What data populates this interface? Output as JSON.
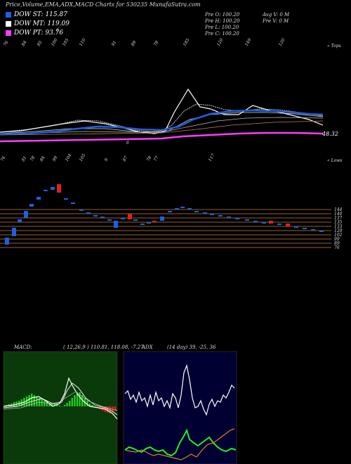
{
  "title": "Price,Volume,EMA,ADX,MACD Charts for 530235 MunafaSutra.com",
  "legend": [
    {
      "label": "DOW ST: 115.87",
      "color": "#1f5fe0"
    },
    {
      "label": "DOW MT: 119.09",
      "color": "#ffffff"
    },
    {
      "label": "DOW PT: 93.76",
      "color": "#ff3cff"
    }
  ],
  "ohlc_left": [
    "Pre  O: 100.20",
    "Pre  H: 100.20",
    "Pre  L: 100.20",
    "Pre  C: 100.20"
  ],
  "ohlc_right": [
    "Avg V: 0  M",
    "Pre  V: 0  M"
  ],
  "marker_6": "6",
  "top_ticks": [
    "76",
    "84",
    "85",
    "100",
    "105",
    "110",
    "91",
    "89",
    "78",
    "185",
    "120",
    "149",
    "120"
  ],
  "top_right_label": "« Tops",
  "bottom_ticks": [
    "76",
    "81",
    "78",
    "84",
    "99",
    "104",
    "105",
    "9",
    "87",
    "78",
    "77",
    "117"
  ],
  "bottom_right_label": "« Lows",
  "ema_last_value": "48.32",
  "ema_mark_6": "6",
  "price_levels": [
    "144",
    "140",
    "137",
    "135",
    "133",
    "128",
    "102",
    "99",
    "89",
    "76"
  ],
  "macd_label": "MACD:",
  "macd_values": "( 12,26,9 ) 110.81,  118.08, -7.27",
  "adx_label": "ADX",
  "adx_values": "(14  day) 39,  -25,  36",
  "colors": {
    "background": "#000000",
    "candle_up": "#1f5fe0",
    "candle_down": "#e02020",
    "level_line": "#c8803c",
    "macd_hist_pos": "#22cc22",
    "macd_hist_neg": "#e02020",
    "adx_plus": "#22ee22",
    "adx_minus": "#e08020"
  }
}
